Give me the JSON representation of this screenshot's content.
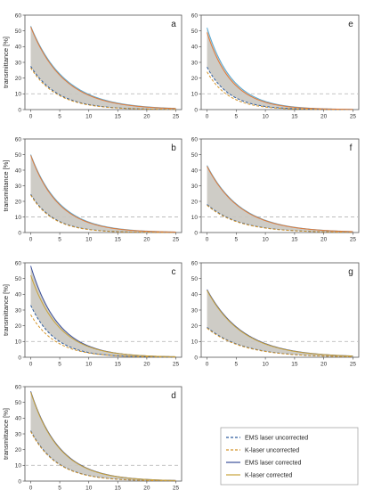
{
  "chart_data": [
    {
      "type": "line",
      "panel_label": "a",
      "ylabel": "transmittance [%]",
      "xlim": [
        -1,
        26
      ],
      "ylim": [
        0,
        60
      ],
      "xticks": [
        0,
        5,
        10,
        15,
        20,
        25
      ],
      "yticks": [
        0,
        10,
        20,
        30,
        40,
        50,
        60
      ],
      "reference_line_y": 10,
      "series": [
        {
          "name": "EMS laser uncorrected",
          "start": 27.5,
          "decay": 0.215
        },
        {
          "name": "K-laser uncorrected",
          "start": 26.5,
          "decay": 0.22
        },
        {
          "name": "EMS laser corrected",
          "start": 53,
          "decay": 0.17
        },
        {
          "name": "K-laser corrected",
          "start": 52.5,
          "decay": 0.175
        }
      ]
    },
    {
      "type": "line",
      "panel_label": "e",
      "ylabel": "",
      "xlim": [
        -1,
        26
      ],
      "ylim": [
        0,
        60
      ],
      "xticks": [
        0,
        5,
        10,
        15,
        20,
        25
      ],
      "yticks": [
        0,
        10,
        20,
        30,
        40,
        50,
        60
      ],
      "reference_line_y": 10,
      "series": [
        {
          "name": "EMS laser uncorrected",
          "start": 27,
          "decay": 0.26
        },
        {
          "name": "K-laser uncorrected",
          "start": 24,
          "decay": 0.27
        },
        {
          "name": "EMS laser corrected",
          "start": 52,
          "decay": 0.23
        },
        {
          "name": "K-laser corrected",
          "start": 49,
          "decay": 0.235
        }
      ]
    },
    {
      "type": "line",
      "panel_label": "b",
      "ylabel": "transmittance [%]",
      "xlim": [
        -1,
        26
      ],
      "ylim": [
        0,
        60
      ],
      "xticks": [
        0,
        5,
        10,
        15,
        20,
        25
      ],
      "yticks": [
        0,
        10,
        20,
        30,
        40,
        50,
        60
      ],
      "reference_line_y": 10,
      "series": [
        {
          "name": "EMS laser uncorrected",
          "start": 24.5,
          "decay": 0.25
        },
        {
          "name": "K-laser uncorrected",
          "start": 24,
          "decay": 0.255
        },
        {
          "name": "EMS laser corrected",
          "start": 50,
          "decay": 0.2
        },
        {
          "name": "K-laser corrected",
          "start": 49.5,
          "decay": 0.205
        }
      ]
    },
    {
      "type": "line",
      "panel_label": "f",
      "ylabel": "",
      "xlim": [
        -1,
        26
      ],
      "ylim": [
        0,
        60
      ],
      "xticks": [
        0,
        5,
        10,
        15,
        20,
        25
      ],
      "yticks": [
        0,
        10,
        20,
        30,
        40,
        50,
        60
      ],
      "reference_line_y": 10,
      "series": [
        {
          "name": "EMS laser uncorrected",
          "start": 18,
          "decay": 0.18
        },
        {
          "name": "K-laser uncorrected",
          "start": 17.5,
          "decay": 0.182
        },
        {
          "name": "EMS laser corrected",
          "start": 43,
          "decay": 0.17
        },
        {
          "name": "K-laser corrected",
          "start": 42.5,
          "decay": 0.172
        }
      ]
    },
    {
      "type": "line",
      "panel_label": "c",
      "ylabel": "transmittance [%]",
      "xlim": [
        -1,
        26
      ],
      "ylim": [
        0,
        60
      ],
      "xticks": [
        0,
        5,
        10,
        15,
        20,
        25
      ],
      "yticks": [
        0,
        10,
        20,
        30,
        40,
        50,
        60
      ],
      "reference_line_y": 10,
      "series": [
        {
          "name": "EMS laser uncorrected",
          "start": 33,
          "decay": 0.24
        },
        {
          "name": "K-laser uncorrected",
          "start": 27,
          "decay": 0.23
        },
        {
          "name": "EMS laser corrected",
          "start": 58,
          "decay": 0.21
        },
        {
          "name": "K-laser corrected",
          "start": 52,
          "decay": 0.205
        }
      ]
    },
    {
      "type": "line",
      "panel_label": "g",
      "ylabel": "",
      "xlim": [
        -1,
        26
      ],
      "ylim": [
        0,
        60
      ],
      "xticks": [
        0,
        5,
        10,
        15,
        20,
        25
      ],
      "yticks": [
        0,
        10,
        20,
        30,
        40,
        50,
        60
      ],
      "reference_line_y": 10,
      "series": [
        {
          "name": "EMS laser uncorrected",
          "start": 19,
          "decay": 0.16
        },
        {
          "name": "K-laser uncorrected",
          "start": 18.5,
          "decay": 0.162
        },
        {
          "name": "EMS laser corrected",
          "start": 43,
          "decay": 0.16
        },
        {
          "name": "K-laser corrected",
          "start": 42.5,
          "decay": 0.162
        }
      ]
    },
    {
      "type": "line",
      "panel_label": "d",
      "ylabel": "transmittance [%]",
      "xlim": [
        -1,
        26
      ],
      "ylim": [
        0,
        60
      ],
      "xticks": [
        0,
        5,
        10,
        15,
        20,
        25
      ],
      "yticks": [
        0,
        10,
        20,
        30,
        40,
        50,
        60
      ],
      "reference_line_y": 10,
      "series": [
        {
          "name": "EMS laser uncorrected",
          "start": 32,
          "decay": 0.22
        },
        {
          "name": "K-laser uncorrected",
          "start": 31.5,
          "decay": 0.222
        },
        {
          "name": "EMS laser corrected",
          "start": 57,
          "decay": 0.2
        },
        {
          "name": "K-laser corrected",
          "start": 56.5,
          "decay": 0.202
        }
      ]
    }
  ],
  "legend": {
    "items": [
      {
        "label": "EMS laser uncorrected",
        "color": "#2e5c9e",
        "style": "dashed"
      },
      {
        "label": "K-laser uncorrected",
        "color": "#d4952a",
        "style": "dashed"
      },
      {
        "label": "EMS laser corrected",
        "color": "#3a4f9a",
        "style": "solid"
      },
      {
        "label": "K-laser corrected",
        "color": "#c8a23a",
        "style": "solid"
      }
    ]
  },
  "colors": {
    "fill": "#c9c6c0",
    "reference_line": "#bdbdbd",
    "ems_uncorrected": "#2e5c9e",
    "k_uncorrected": "#d4952a",
    "ems_corrected_a": "#58a9d4",
    "k_corrected_a": "#e07a3a"
  }
}
